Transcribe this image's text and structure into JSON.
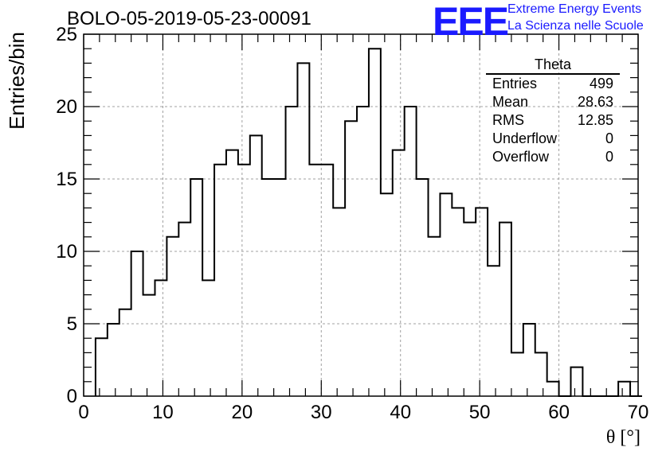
{
  "header": {
    "run_title": "BOLO-05-2019-05-23-00091",
    "logo_text": "EEE",
    "brand_line1": "Extreme Energy Events",
    "brand_line2": "La Scienza nelle Scuole"
  },
  "stats_box": {
    "title": "Theta",
    "rows": [
      {
        "key": "Entries",
        "value": "499"
      },
      {
        "key": "Mean",
        "value": "28.63"
      },
      {
        "key": "RMS",
        "value": "12.85"
      },
      {
        "key": "Underflow",
        "value": "0"
      },
      {
        "key": "Overflow",
        "value": "0"
      }
    ]
  },
  "colors": {
    "line": "#000000",
    "grid": "#a0a0a0",
    "accent": "#1a1aff",
    "background": "#ffffff"
  },
  "chart_data": {
    "type": "histogram",
    "xlabel": "θ [°]",
    "ylabel": "Entries/bin",
    "xlim": [
      0,
      70
    ],
    "ylim": [
      0,
      25
    ],
    "x_ticks": [
      0,
      10,
      20,
      30,
      40,
      50,
      60,
      70
    ],
    "y_ticks": [
      0,
      5,
      10,
      15,
      20,
      25
    ],
    "grid": true,
    "bin_width": 1.5,
    "bin_start": 1.5,
    "bin_counts": [
      4,
      5,
      6,
      10,
      7,
      8,
      11,
      12,
      15,
      8,
      16,
      17,
      16,
      18,
      15,
      15,
      20,
      23,
      16,
      16,
      13,
      19,
      20,
      24,
      14,
      17,
      20,
      15,
      11,
      14,
      13,
      12,
      13,
      9,
      12,
      3,
      5,
      3,
      1,
      0,
      2,
      0,
      0,
      0,
      1,
      0
    ]
  }
}
